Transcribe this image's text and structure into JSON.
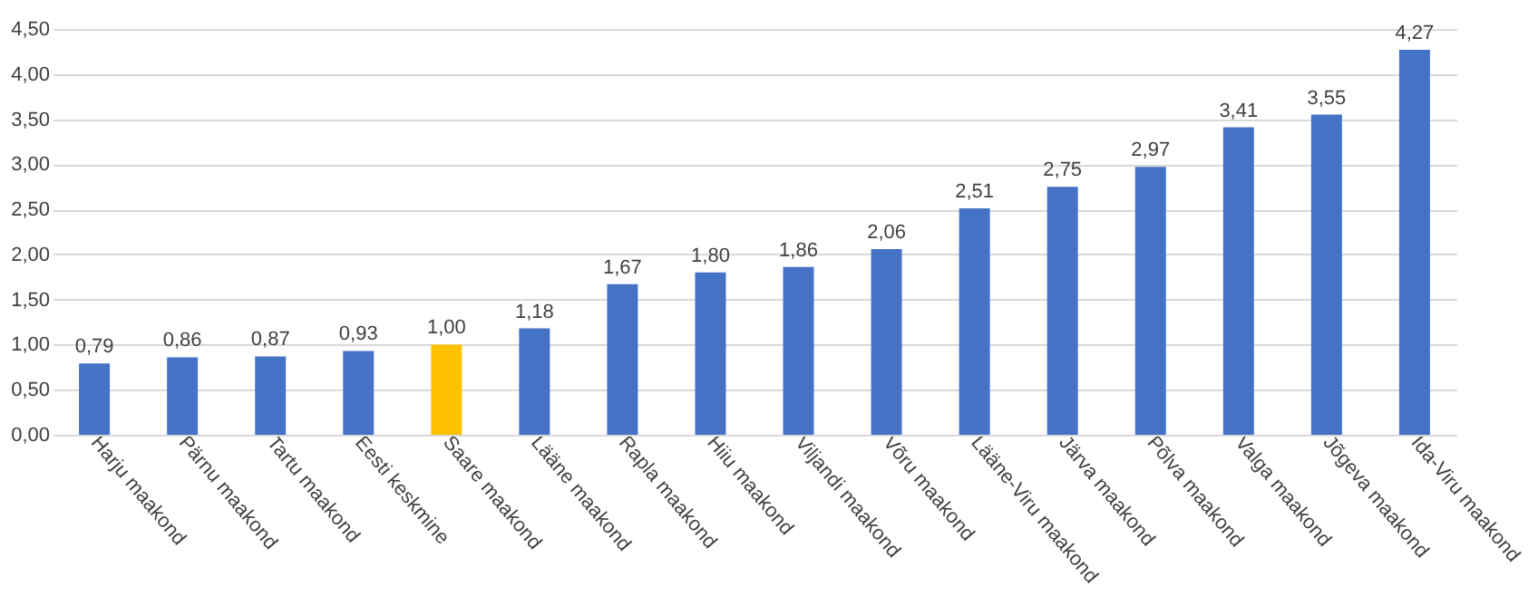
{
  "chart_data": {
    "type": "bar",
    "categories": [
      "Harju maakond",
      "Pärnu maakond",
      "Tartu maakond",
      "Eesti keskmine",
      "Saare maakond",
      "Lääne maakond",
      "Rapla maakond",
      "Hiiu maakond",
      "Viljandi maakond",
      "Võru maakond",
      "Lääne-Viru maakond",
      "Järva maakond",
      "Põlva maakond",
      "Valga maakond",
      "Jõgeva maakond",
      "Ida-Viru maakond"
    ],
    "values": [
      0.79,
      0.86,
      0.87,
      0.93,
      1.0,
      1.18,
      1.67,
      1.8,
      1.86,
      2.06,
      2.51,
      2.75,
      2.97,
      3.41,
      3.55,
      4.27
    ],
    "value_labels": [
      "0,79",
      "0,86",
      "0,87",
      "0,93",
      "1,00",
      "1,18",
      "1,67",
      "1,80",
      "1,86",
      "2,06",
      "2,51",
      "2,75",
      "2,97",
      "3,41",
      "3,55",
      "4,27"
    ],
    "colors": [
      "#4472c4",
      "#4472c4",
      "#4472c4",
      "#4472c4",
      "#ffc000",
      "#4472c4",
      "#4472c4",
      "#4472c4",
      "#4472c4",
      "#4472c4",
      "#4472c4",
      "#4472c4",
      "#4472c4",
      "#4472c4",
      "#4472c4",
      "#4472c4"
    ],
    "ylim": [
      0,
      4.5
    ],
    "yticks": [
      {
        "value": 0,
        "label": "0,00"
      },
      {
        "value": 0.5,
        "label": "0,50"
      },
      {
        "value": 1,
        "label": "1,00"
      },
      {
        "value": 1.5,
        "label": "1,50"
      },
      {
        "value": 2,
        "label": "2,00"
      },
      {
        "value": 2.5,
        "label": "2,50"
      },
      {
        "value": 3,
        "label": "3,00"
      },
      {
        "value": 3.5,
        "label": "3,50"
      },
      {
        "value": 4,
        "label": "4,00"
      },
      {
        "value": 4.5,
        "label": "4,50"
      }
    ],
    "grid": "y"
  }
}
